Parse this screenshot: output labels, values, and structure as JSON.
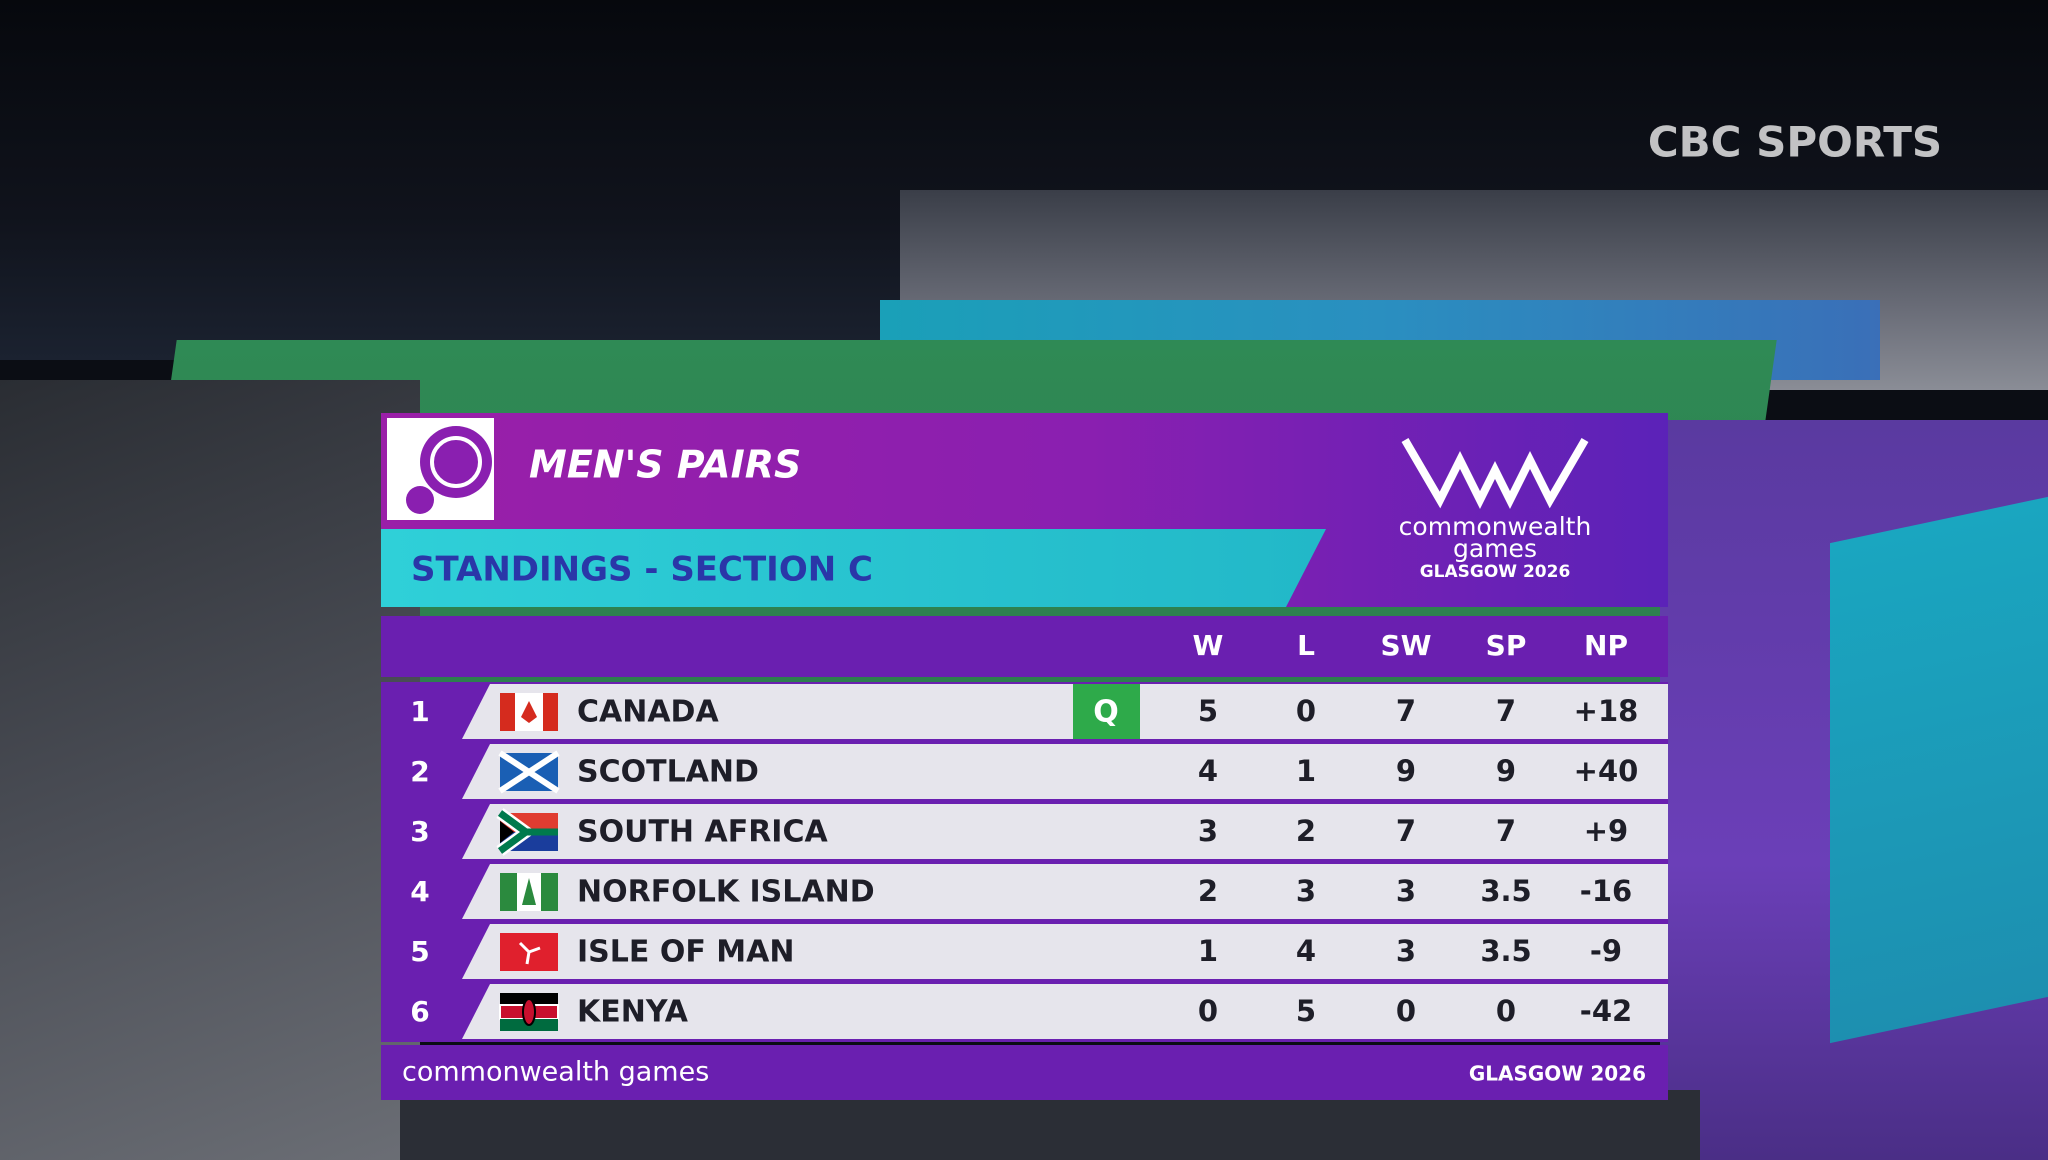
{
  "broadcaster": "CBC SPORTS",
  "header": {
    "title": "MEN'S PAIRS",
    "subtitle": "STANDINGS - SECTION C",
    "logo": {
      "line1": "commonwealth",
      "line2": "games",
      "line3": "GLASGOW 2026"
    }
  },
  "table": {
    "columns": [
      "W",
      "L",
      "SW",
      "SP",
      "NP"
    ],
    "rows": [
      {
        "rank": "1",
        "country": "CANADA",
        "status": "Q",
        "values": [
          "5",
          "0",
          "7",
          "7",
          "+18"
        ]
      },
      {
        "rank": "2",
        "country": "SCOTLAND",
        "values": [
          "4",
          "1",
          "9",
          "9",
          "+40"
        ]
      },
      {
        "rank": "3",
        "country": "SOUTH AFRICA",
        "values": [
          "3",
          "2",
          "7",
          "7",
          "+9"
        ]
      },
      {
        "rank": "4",
        "country": "NORFOLK ISLAND",
        "values": [
          "2",
          "3",
          "3",
          "3.5",
          "-16"
        ]
      },
      {
        "rank": "5",
        "country": "ISLE OF MAN",
        "values": [
          "1",
          "4",
          "3",
          "3.5",
          "-9"
        ]
      },
      {
        "rank": "6",
        "country": "KENYA",
        "values": [
          "0",
          "5",
          "0",
          "0",
          "-42"
        ]
      }
    ]
  },
  "footer": {
    "left": "commonwealth games",
    "right": "GLASGOW 2026"
  }
}
